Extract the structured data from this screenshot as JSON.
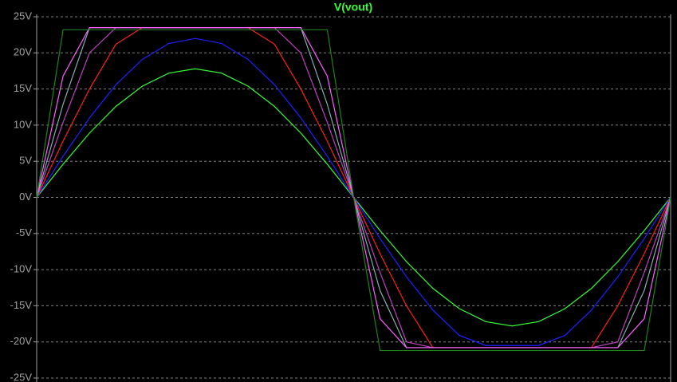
{
  "chart_data": {
    "type": "line",
    "title": "V(vout)",
    "categories": [
      null,
      null,
      null,
      null,
      null,
      null,
      null,
      null,
      null,
      null,
      null,
      null,
      null,
      null,
      null,
      null,
      null,
      null,
      null,
      null,
      null,
      null,
      null,
      null,
      null
    ],
    "ylim": [
      -25,
      25
    ],
    "yticks": [
      {
        "value": 25,
        "label": "25V"
      },
      {
        "value": 20,
        "label": "20V"
      },
      {
        "value": 15,
        "label": "15V"
      },
      {
        "value": 10,
        "label": "10V"
      },
      {
        "value": 5,
        "label": "5V"
      },
      {
        "value": 0,
        "label": "0V"
      },
      {
        "value": -5,
        "label": "-5V"
      },
      {
        "value": -10,
        "label": "-10V"
      },
      {
        "value": -15,
        "label": "-15V"
      },
      {
        "value": -20,
        "label": "-20V"
      },
      {
        "value": -25,
        "label": "-25V"
      }
    ],
    "grid": true,
    "series": [
      {
        "color": "#33ff33",
        "values": [
          0,
          4.6,
          8.9,
          12.6,
          15.4,
          17.2,
          17.8,
          17.2,
          15.4,
          12.6,
          8.9,
          4.6,
          0,
          -4.6,
          -8.9,
          -12.6,
          -15.4,
          -17.2,
          -17.8,
          -17.2,
          -15.4,
          -12.6,
          -8.9,
          -4.6,
          0
        ]
      },
      {
        "color": "#2020ff",
        "values": [
          0,
          5.7,
          11,
          15.6,
          19.1,
          21.3,
          22,
          21.3,
          19.1,
          15.6,
          11,
          5.7,
          0,
          -5.7,
          -11,
          -15.6,
          -19.1,
          -20.5,
          -20.5,
          -20.5,
          -19.1,
          -15.6,
          -11,
          -5.7,
          0
        ]
      },
      {
        "color": "#ff2020",
        "values": [
          0,
          7.8,
          15,
          21.2,
          23.5,
          23.5,
          23.5,
          23.5,
          23.5,
          21.2,
          15,
          7.8,
          0,
          -7.8,
          -15,
          -20.8,
          -20.8,
          -20.8,
          -20.8,
          -20.8,
          -20.8,
          -20.8,
          -15,
          -7.8,
          0
        ]
      },
      {
        "color": "#c040c0",
        "values": [
          0,
          10.4,
          20,
          23.5,
          23.5,
          23.5,
          23.5,
          23.5,
          23.5,
          23.5,
          20,
          10.4,
          0,
          -10.4,
          -20,
          -20.8,
          -20.8,
          -20.8,
          -20.8,
          -20.8,
          -20.8,
          -20.8,
          -20,
          -10.4,
          0
        ]
      },
      {
        "color": "#80b0b0",
        "values": [
          0,
          12.9,
          23.5,
          23.5,
          23.5,
          23.5,
          23.5,
          23.5,
          23.5,
          23.5,
          23.5,
          12.9,
          0,
          -12.9,
          -20.8,
          -20.8,
          -20.8,
          -20.8,
          -20.8,
          -20.8,
          -20.8,
          -20.8,
          -20.8,
          -12.9,
          0
        ]
      },
      {
        "color": "#ff60ff",
        "values": [
          0,
          16.8,
          23.5,
          23.5,
          23.5,
          23.5,
          23.5,
          23.5,
          23.5,
          23.5,
          23.5,
          16.8,
          0,
          -16.8,
          -20.8,
          -20.8,
          -20.8,
          -20.8,
          -20.8,
          -20.8,
          -20.8,
          -20.8,
          -20.8,
          -16.8,
          0
        ]
      },
      {
        "color": "#208020",
        "values": [
          0,
          23.2,
          23.2,
          23.2,
          23.2,
          23.2,
          23.2,
          23.2,
          23.2,
          23.2,
          23.2,
          23.2,
          0,
          -21.2,
          -21.2,
          -21.2,
          -21.2,
          -21.2,
          -21.2,
          -21.2,
          -21.2,
          -21.2,
          -21.2,
          -21.2,
          0
        ]
      }
    ]
  }
}
